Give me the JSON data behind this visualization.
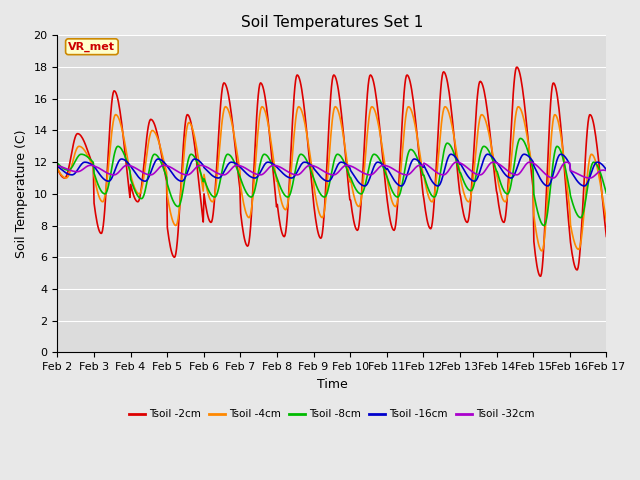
{
  "title": "Soil Temperatures Set 1",
  "xlabel": "Time",
  "ylabel": "Soil Temperature (C)",
  "ylim": [
    0,
    20
  ],
  "background_color": "#e8e8e8",
  "plot_bg_color": "#dcdcdc",
  "annotation_text": "VR_met",
  "annotation_color": "#cc0000",
  "annotation_bg": "#ffffcc",
  "annotation_border": "#cc8800",
  "xtick_labels": [
    "Feb 2",
    "Feb 3",
    "Feb 4",
    "Feb 5",
    "Feb 6",
    "Feb 7",
    "Feb 8",
    "Feb 9",
    "Feb 10",
    "Feb 11",
    "Feb 12",
    "Feb 13",
    "Feb 14",
    "Feb 15",
    "Feb 16",
    "Feb 17"
  ],
  "legend_colors": [
    "#dd0000",
    "#ff8800",
    "#00bb00",
    "#0000cc",
    "#aa00cc"
  ],
  "legend_labels": [
    "Tsoil -2cm",
    "Tsoil -4cm",
    "Tsoil -8cm",
    "Tsoil -16cm",
    "Tsoil -32cm"
  ],
  "figsize": [
    6.4,
    4.8
  ],
  "dpi": 100
}
